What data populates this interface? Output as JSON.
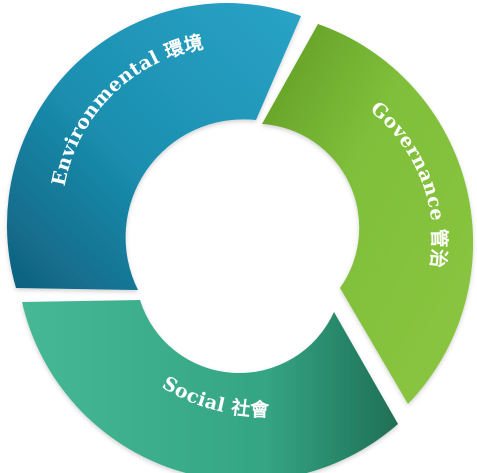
{
  "diagram": {
    "segments": [
      {
        "key": "environmental",
        "label": "Environmental 環境",
        "color": "#1b8fb0"
      },
      {
        "key": "governance",
        "label": "Governance 管治",
        "color": "#7fbf3a"
      },
      {
        "key": "social",
        "label": "Social 社會",
        "color": "#3fb392"
      }
    ]
  }
}
